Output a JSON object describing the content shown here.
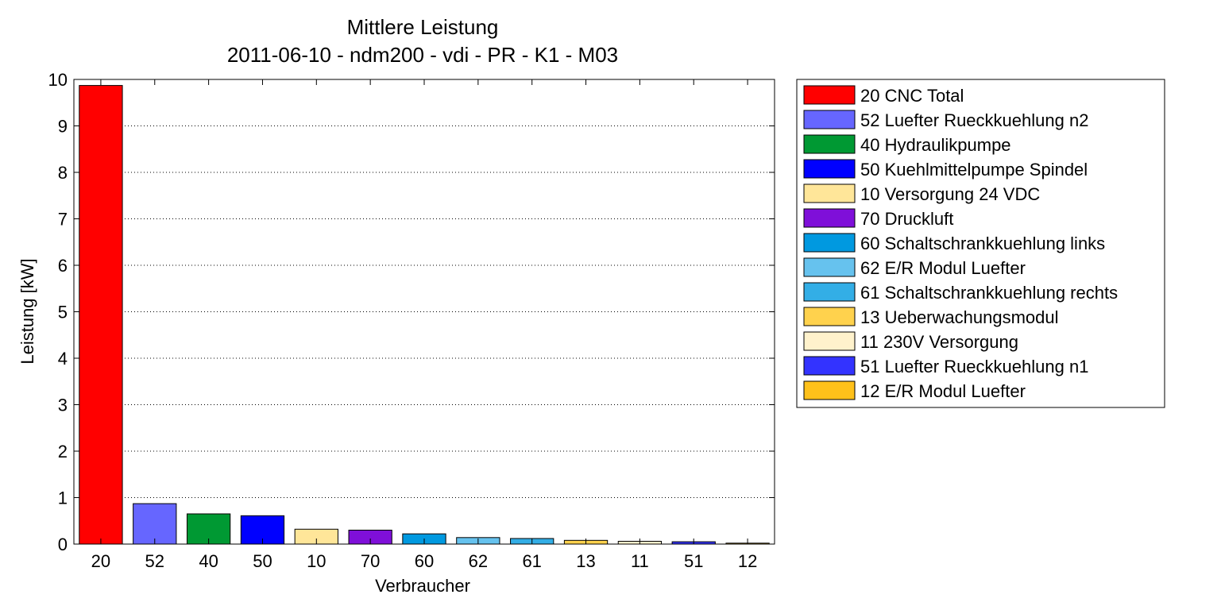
{
  "chart_data": {
    "type": "bar",
    "title": "Mittlere Leistung",
    "subtitle": "2011-06-10 - ndm200 - vdi - PR - K1 - M03",
    "xlabel": "Verbraucher",
    "ylabel": "Leistung [kW]",
    "ylim": [
      0,
      10
    ],
    "yticks": [
      0,
      1,
      2,
      3,
      4,
      5,
      6,
      7,
      8,
      9,
      10
    ],
    "grid": "horizontal dotted",
    "legend_position": "right",
    "categories": [
      "20",
      "52",
      "40",
      "50",
      "10",
      "70",
      "60",
      "62",
      "61",
      "13",
      "11",
      "51",
      "12"
    ],
    "values": [
      9.87,
      0.87,
      0.65,
      0.61,
      0.32,
      0.3,
      0.22,
      0.14,
      0.12,
      0.08,
      0.06,
      0.05,
      0.02
    ],
    "colors": [
      "#ff0000",
      "#6666ff",
      "#009933",
      "#0000ff",
      "#ffe699",
      "#7f0fd9",
      "#0099e0",
      "#66c2ee",
      "#33aee6",
      "#ffd24d",
      "#fff2cc",
      "#3333ff",
      "#ffc11a"
    ],
    "legend": [
      "20 CNC Total",
      "52 Luefter Rueckkuehlung n2",
      "40 Hydraulikpumpe",
      "50 Kuehlmittelpumpe Spindel",
      "10 Versorgung 24 VDC",
      "70 Druckluft",
      "60 Schaltschrankkuehlung links",
      "62 E/R Modul Luefter",
      "61 Schaltschrankkuehlung rechts",
      "13 Ueberwachungsmodul",
      "11 230V Versorgung",
      "51 Luefter Rueckkuehlung n1",
      "12 E/R Modul Luefter"
    ]
  }
}
